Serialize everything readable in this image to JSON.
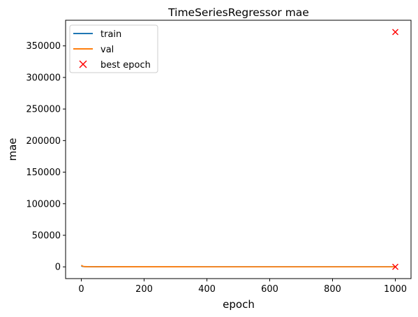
{
  "chart_data": {
    "type": "line",
    "title": "TimeSeriesRegressor mae",
    "xlabel": "epoch",
    "ylabel": "mae",
    "xlim": [
      -50,
      1050
    ],
    "ylim": [
      -18600,
      390600
    ],
    "xticks": [
      0,
      200,
      400,
      600,
      800,
      1000
    ],
    "yticks": [
      0,
      50000,
      100000,
      150000,
      200000,
      250000,
      300000,
      350000
    ],
    "grid": false,
    "legend_position": "upper left",
    "series": [
      {
        "name": "train",
        "color": "#1f77b4",
        "x": [
          0,
          5,
          10,
          20,
          50,
          100,
          200,
          400,
          600,
          800,
          1000
        ],
        "y": [
          1200,
          600,
          300,
          200,
          150,
          120,
          100,
          90,
          85,
          80,
          80
        ]
      },
      {
        "name": "val",
        "color": "#ff7f0e",
        "x": [
          0,
          5,
          10,
          20,
          50,
          100,
          200,
          400,
          600,
          800,
          1000
        ],
        "y": [
          2500,
          900,
          400,
          250,
          180,
          150,
          120,
          100,
          95,
          90,
          90
        ]
      }
    ],
    "markers": {
      "name": "best epoch",
      "symbol": "x",
      "color": "#ff0000",
      "points": [
        {
          "x": 1000,
          "y": 372000
        },
        {
          "x": 1000,
          "y": 0
        }
      ]
    }
  }
}
